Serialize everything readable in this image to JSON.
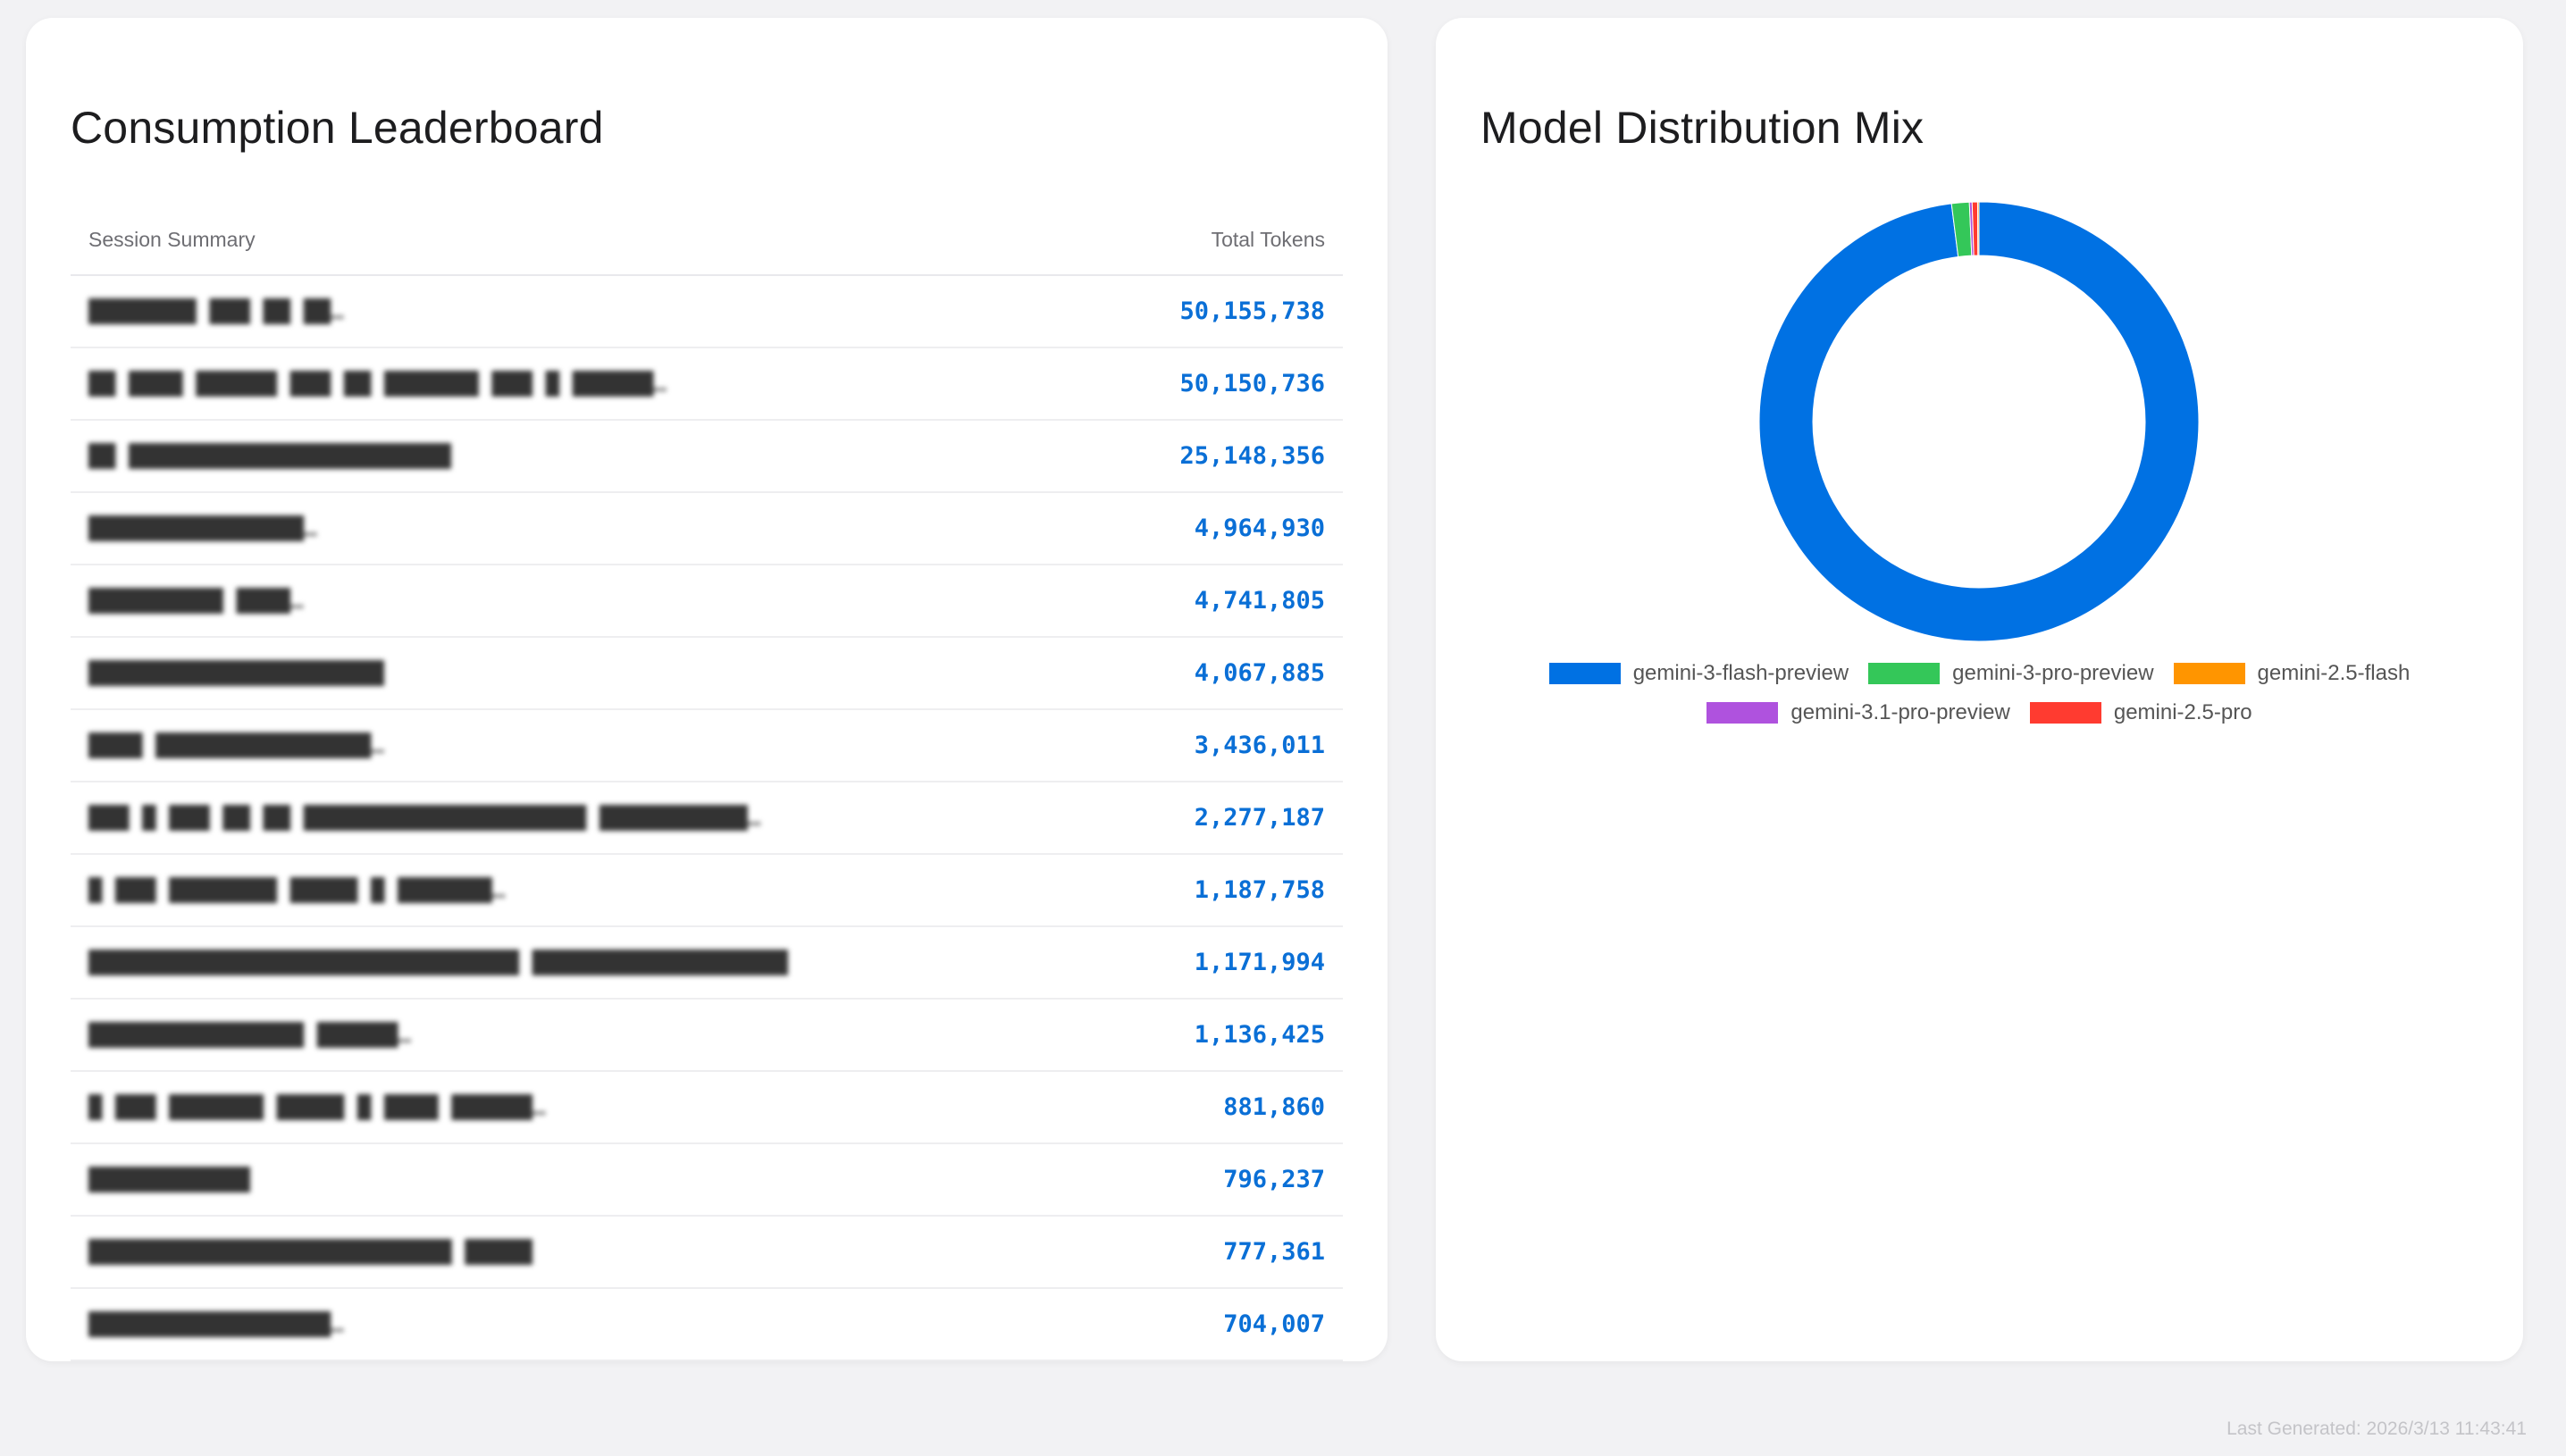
{
  "leaderboard": {
    "title": "Consumption Leaderboard",
    "col_summary": "Session Summary",
    "col_tokens": "Total Tokens",
    "rows": [
      {
        "summary": "████████ ███ ██ ██…",
        "tokens": "50,155,738"
      },
      {
        "summary": "██ ████ ██████ ███ ██ ███████ ███ █ ██████…",
        "tokens": "50,150,736"
      },
      {
        "summary": "██ ████████████████████████",
        "tokens": "25,148,356"
      },
      {
        "summary": "████████████████…",
        "tokens": "4,964,930"
      },
      {
        "summary": "██████████ ████…",
        "tokens": "4,741,805"
      },
      {
        "summary": "██████████████████████",
        "tokens": "4,067,885"
      },
      {
        "summary": "████ ████████████████…",
        "tokens": "3,436,011"
      },
      {
        "summary": "███ █ ███ ██ ██ █████████████████████ ███████████…",
        "tokens": "2,277,187"
      },
      {
        "summary": "█ ███ ████████ █████ █ ███████…",
        "tokens": "1,187,758"
      },
      {
        "summary": "████████████████████████████████ ███████████████████",
        "tokens": "1,171,994"
      },
      {
        "summary": "████████████████ ██████…",
        "tokens": "1,136,425"
      },
      {
        "summary": "█ ███ ███████ █████ █ ████ ██████…",
        "tokens": "881,860"
      },
      {
        "summary": "████████████",
        "tokens": "796,237"
      },
      {
        "summary": "███████████████████████████ █████",
        "tokens": "777,361"
      },
      {
        "summary": "██████████████████…",
        "tokens": "704,007"
      }
    ]
  },
  "mix": {
    "title": "Model Distribution Mix"
  },
  "chart_data": {
    "type": "pie",
    "title": "",
    "donut": true,
    "legend_position": "bottom",
    "labels": [
      "gemini-3-flash-preview",
      "gemini-3-pro-preview",
      "gemini-2.5-flash",
      "gemini-3.1-pro-preview",
      "gemini-2.5-pro"
    ],
    "values": [
      98.0,
      1.3,
      0.1,
      0.2,
      0.4
    ],
    "colors": [
      "#0071e3",
      "#34c759",
      "#ff9500",
      "#af52de",
      "#ff3b30"
    ]
  },
  "footer": {
    "text": "Last Generated: 2026/3/13 11:43:41"
  }
}
